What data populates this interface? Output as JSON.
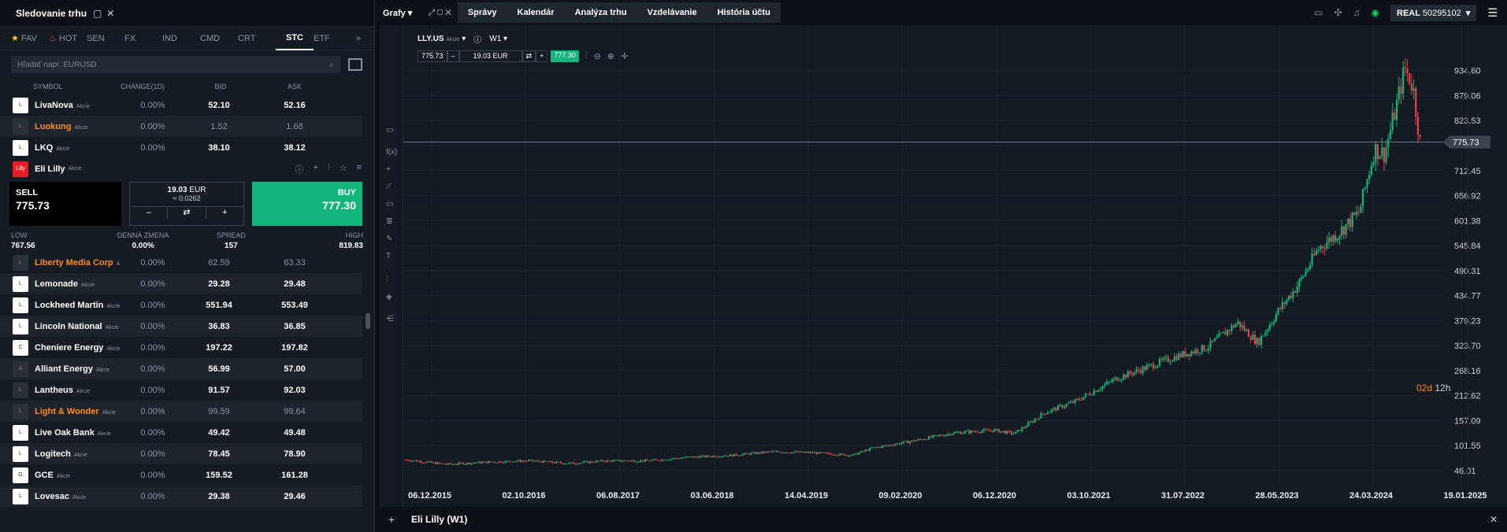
{
  "left_panel": {
    "title": "Sledovanie trhu",
    "tabs": [
      {
        "label": "FAV",
        "icon": "star-icon"
      },
      {
        "label": "HOT",
        "icon": "fire-icon"
      },
      {
        "label": "SEN"
      },
      {
        "label": "FX"
      },
      {
        "label": "IND"
      },
      {
        "label": "CMD"
      },
      {
        "label": "CRT"
      },
      {
        "label": "STC",
        "active": true
      },
      {
        "label": "ETF"
      }
    ],
    "search_placeholder": "Hľadať napr. EURUSD",
    "columns": [
      "SYMBOL",
      "CHANGE(1D)",
      "BID",
      "ASK"
    ],
    "rows_top": [
      {
        "name": "LivaNova",
        "tag": "Akcie",
        "change": "0.00%",
        "bid": "52.10",
        "ask": "52.16",
        "orange": false,
        "muted": false
      },
      {
        "name": "Luokung",
        "tag": "Akcie",
        "change": "0.00%",
        "bid": "1.52",
        "ask": "1.68",
        "orange": true,
        "muted": true
      },
      {
        "name": "LKQ",
        "tag": "Akcie",
        "change": "0.00%",
        "bid": "38.10",
        "ask": "38.12",
        "orange": false,
        "muted": false
      }
    ],
    "selected": {
      "name": "Eli Lilly",
      "tag": "Akcie",
      "sell_label": "SELL",
      "sell_price": "775.73",
      "volume": "19.03",
      "volume_unit": "EUR",
      "volume_sub": "≈ 0.0262",
      "buy_label": "BUY",
      "buy_price": "777.30",
      "stats": [
        {
          "label": "LOW",
          "value": "767.56"
        },
        {
          "label": "DENNÁ ZMENA",
          "value": "0.00%"
        },
        {
          "label": "SPREAD",
          "value": "157"
        },
        {
          "label": "HIGH",
          "value": "819.83"
        }
      ]
    },
    "rows_bottom": [
      {
        "name": "Liberty Media Corp",
        "tag": "A",
        "change": "0.00%",
        "bid": "62.59",
        "ask": "63.33",
        "orange": true,
        "muted": true
      },
      {
        "name": "Lemonade",
        "tag": "Akcie",
        "change": "0.00%",
        "bid": "29.28",
        "ask": "29.48",
        "orange": false,
        "muted": false
      },
      {
        "name": "Lockheed Martin",
        "tag": "Akcie",
        "change": "0.00%",
        "bid": "551.94",
        "ask": "553.49",
        "orange": false,
        "muted": false
      },
      {
        "name": "Lincoln National",
        "tag": "Akcie",
        "change": "0.00%",
        "bid": "36.83",
        "ask": "36.85",
        "orange": false,
        "muted": false
      },
      {
        "name": "Cheniere Energy",
        "tag": "Akcie",
        "change": "0.00%",
        "bid": "197.22",
        "ask": "197.82",
        "orange": false,
        "muted": false
      },
      {
        "name": "Alliant Energy",
        "tag": "Akcie",
        "change": "0.00%",
        "bid": "56.99",
        "ask": "57.00",
        "orange": false,
        "muted": false
      },
      {
        "name": "Lantheus",
        "tag": "Akcie",
        "change": "0.00%",
        "bid": "91.57",
        "ask": "92.03",
        "orange": false,
        "muted": false
      },
      {
        "name": "Light & Wonder",
        "tag": "Akcie",
        "change": "0.00%",
        "bid": "99.59",
        "ask": "99.64",
        "orange": true,
        "muted": true
      },
      {
        "name": "Live Oak Bank",
        "tag": "Akcie",
        "change": "0.00%",
        "bid": "49.42",
        "ask": "49.48",
        "orange": false,
        "muted": false
      },
      {
        "name": "Logitech",
        "tag": "Akcie",
        "change": "0.00%",
        "bid": "78.45",
        "ask": "78.90",
        "orange": false,
        "muted": false
      },
      {
        "name": "GCE",
        "tag": "Akcie",
        "change": "0.00%",
        "bid": "159.52",
        "ask": "161.28",
        "orange": false,
        "muted": false
      },
      {
        "name": "Lovesac",
        "tag": "Akcie",
        "change": "0.00%",
        "bid": "29.38",
        "ask": "29.46",
        "orange": false,
        "muted": false
      }
    ]
  },
  "top_bar": {
    "grafy": "Grafy",
    "nav": [
      "Správy",
      "Kalendár",
      "Analýza trhu",
      "Vzdelávanie",
      "História účtu"
    ],
    "account_type": "REAL",
    "account_number": "50295102"
  },
  "chart_header": {
    "symbol": "LLY.US",
    "tag": "Akcie",
    "timeframe": "W1",
    "sell_price": "775.73",
    "volume": "19.03 EUR",
    "buy_price": "777.30"
  },
  "chart_data": {
    "type": "candlestick",
    "symbol": "LLY.US",
    "timeframe": "W1",
    "x_ticks": [
      "06.12.2015",
      "02.10.2016",
      "06.08.2017",
      "03.06.2018",
      "14.04.2019",
      "09.02.2020",
      "06.12.2020",
      "03.10.2021",
      "31.07.2022",
      "28.05.2023",
      "24.03.2024",
      "19.01.2025"
    ],
    "y_ticks": [
      934.6,
      879.06,
      823.53,
      767.99,
      712.45,
      656.92,
      601.38,
      545.84,
      490.31,
      434.77,
      379.23,
      323.7,
      268.16,
      212.62,
      157.09,
      101.55,
      46.01
    ],
    "y_tick_labels": [
      "934.60",
      "879.06",
      "823.53",
      "",
      "712.45",
      "656.92",
      "601.38",
      "545.84",
      "490.31",
      "434.77",
      "379.23",
      "323.70",
      "268.16",
      "212.62",
      "157.09",
      "101.55",
      "46.01"
    ],
    "ylim": [
      46.01,
      990
    ],
    "current_price": 775.73,
    "current_price_label": "775.73",
    "approx_path": [
      [
        0,
        70
      ],
      [
        0.04,
        60
      ],
      [
        0.08,
        65
      ],
      [
        0.12,
        68
      ],
      [
        0.16,
        62
      ],
      [
        0.2,
        68
      ],
      [
        0.24,
        68
      ],
      [
        0.28,
        76
      ],
      [
        0.32,
        80
      ],
      [
        0.36,
        88
      ],
      [
        0.4,
        86
      ],
      [
        0.44,
        80
      ],
      [
        0.46,
        96
      ],
      [
        0.5,
        112
      ],
      [
        0.54,
        130
      ],
      [
        0.58,
        136
      ],
      [
        0.6,
        128
      ],
      [
        0.63,
        175
      ],
      [
        0.66,
        200
      ],
      [
        0.7,
        250
      ],
      [
        0.73,
        275
      ],
      [
        0.76,
        300
      ],
      [
        0.79,
        320
      ],
      [
        0.82,
        375
      ],
      [
        0.84,
        330
      ],
      [
        0.86,
        400
      ],
      [
        0.88,
        460
      ],
      [
        0.9,
        540
      ],
      [
        0.92,
        575
      ],
      [
        0.94,
        620
      ],
      [
        0.955,
        760
      ],
      [
        0.965,
        750
      ],
      [
        0.975,
        840
      ],
      [
        0.985,
        940
      ],
      [
        0.993,
        900
      ],
      [
        1.0,
        775
      ]
    ]
  },
  "countdown": {
    "days": "02d",
    "hours": "12h"
  },
  "bottom_tab": "Eli Lilly (W1)",
  "colors": {
    "up": "#12b57b",
    "down": "#e8414e",
    "accent": "#12b57b",
    "orange": "#ff8c1a"
  }
}
